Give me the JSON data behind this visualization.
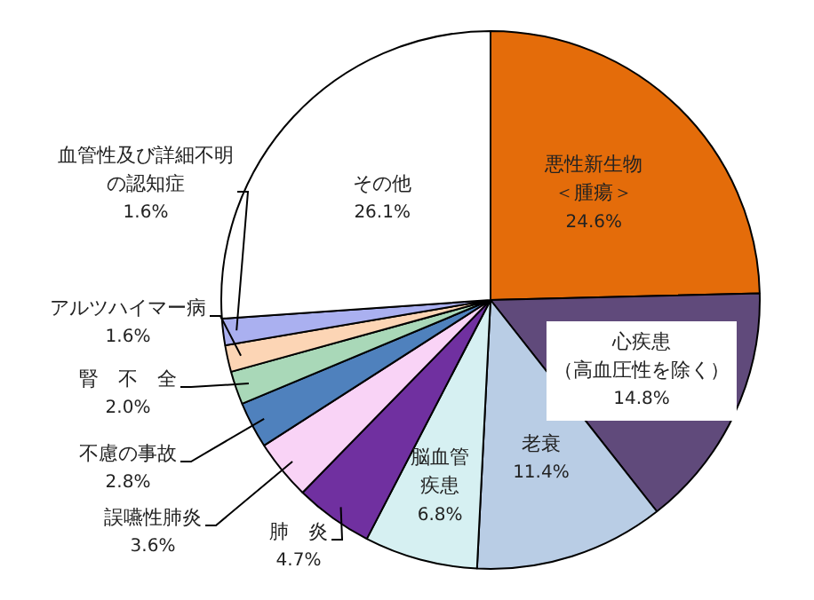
{
  "chart_data": {
    "type": "pie",
    "categories": [
      "悪性新生物＜腫瘍＞",
      "心疾患（高血圧性を除く）",
      "老衰",
      "脳血管疾患",
      "肺　炎",
      "誤嚥性肺炎",
      "不慮の事故",
      "腎　不　全",
      "アルツハイマー病",
      "血管性及び詳細不明の認知症",
      "その他"
    ],
    "values": [
      24.6,
      14.8,
      11.4,
      6.8,
      4.7,
      3.6,
      2.8,
      2.0,
      1.6,
      1.6,
      26.1
    ],
    "value_labels": [
      "24.6%",
      "14.8%",
      "11.4%",
      "6.8%",
      "4.7%",
      "3.6%",
      "2.8%",
      "2.0%",
      "1.6%",
      "1.6%",
      "26.1%"
    ],
    "colors": [
      "#e46c0a",
      "#604a7b",
      "#b9cde5",
      "#d6f0f2",
      "#7030a0",
      "#f9d3f6",
      "#4f81bd",
      "#a9d8b8",
      "#fcd5b5",
      "#aab0f0",
      "#ffffff"
    ],
    "legend": false
  }
}
